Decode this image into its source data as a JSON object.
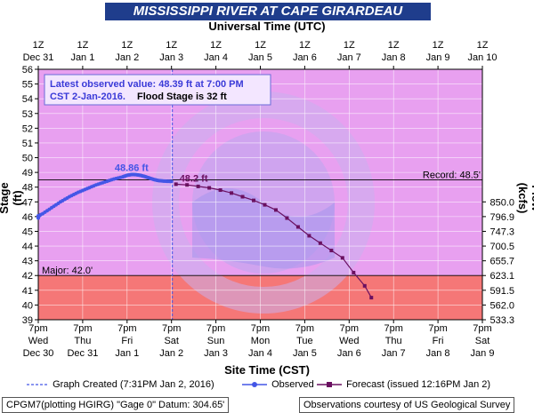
{
  "title": "MISSISSIPPI RIVER AT CAPE GIRARDEAU",
  "top_axis_label": "Universal Time (UTC)",
  "bottom_axis_label": "Site Time (CST)",
  "left_axis_label": "Stage (ft)",
  "right_axis_label": "Flow (kcfs)",
  "info_box": {
    "line1": "Latest observed value: 48.39 ft at 7:00 PM",
    "line2": "CST 2-Jan-2016.",
    "line2_bold": "Flood Stage is 32 ft"
  },
  "legend": {
    "created": "Graph Created (7:31PM Jan 2, 2016)",
    "observed": "Observed",
    "forecast": "Forecast (issued 12:16PM Jan 2)"
  },
  "footer": {
    "left": "CPGM7(plotting HGIRG) \"Gage 0\" Datum: 304.65'",
    "right": "Observations courtesy of US Geological Survey"
  },
  "colors": {
    "title_bg": "#1f3d8c",
    "plot_upper": "#e8a0f0",
    "plot_lower": "#f57777",
    "observed": "#4456e6",
    "forecast": "#6a1060"
  },
  "chart_data": {
    "type": "line",
    "x_range_days": [
      0,
      10
    ],
    "ylim": [
      39,
      56
    ],
    "y_ticks": [
      39,
      40,
      41,
      42,
      43,
      44,
      45,
      46,
      47,
      48,
      49,
      50,
      51,
      52,
      53,
      54,
      55,
      56
    ],
    "grid": true,
    "top_ticks": [
      {
        "x": 0,
        "t1": "1Z",
        "t2": "Dec 31"
      },
      {
        "x": 1,
        "t1": "1Z",
        "t2": "Jan 1"
      },
      {
        "x": 2,
        "t1": "1Z",
        "t2": "Jan 2"
      },
      {
        "x": 3,
        "t1": "1Z",
        "t2": "Jan 3"
      },
      {
        "x": 4,
        "t1": "1Z",
        "t2": "Jan 4"
      },
      {
        "x": 5,
        "t1": "1Z",
        "t2": "Jan 5"
      },
      {
        "x": 6,
        "t1": "1Z",
        "t2": "Jan 6"
      },
      {
        "x": 7,
        "t1": "1Z",
        "t2": "Jan 7"
      },
      {
        "x": 8,
        "t1": "1Z",
        "t2": "Jan 8"
      },
      {
        "x": 9,
        "t1": "1Z",
        "t2": "Jan 9"
      },
      {
        "x": 10,
        "t1": "1Z",
        "t2": "Jan 10"
      }
    ],
    "bottom_ticks": [
      {
        "x": 0,
        "t1": "7pm",
        "t2": "Wed",
        "t3": "Dec 30"
      },
      {
        "x": 1,
        "t1": "7pm",
        "t2": "Thu",
        "t3": "Dec 31"
      },
      {
        "x": 2,
        "t1": "7pm",
        "t2": "Fri",
        "t3": "Jan 1"
      },
      {
        "x": 3,
        "t1": "7pm",
        "t2": "Sat",
        "t3": "Jan 2"
      },
      {
        "x": 4,
        "t1": "7pm",
        "t2": "Sun",
        "t3": "Jan 3"
      },
      {
        "x": 5,
        "t1": "7pm",
        "t2": "Mon",
        "t3": "Jan 4"
      },
      {
        "x": 6,
        "t1": "7pm",
        "t2": "Tue",
        "t3": "Jan 5"
      },
      {
        "x": 7,
        "t1": "7pm",
        "t2": "Wed",
        "t3": "Jan 6"
      },
      {
        "x": 8,
        "t1": "7pm",
        "t2": "Thu",
        "t3": "Jan 7"
      },
      {
        "x": 9,
        "t1": "7pm",
        "t2": "Fri",
        "t3": "Jan 8"
      },
      {
        "x": 10,
        "t1": "7pm",
        "t2": "Sat",
        "t3": "Jan 9"
      }
    ],
    "flow_ticks": [
      {
        "stage": 40,
        "label": "562.0"
      },
      {
        "stage": 41,
        "label": "591.5"
      },
      {
        "stage": 42,
        "label": "623.1"
      },
      {
        "stage": 43,
        "label": "655.7"
      },
      {
        "stage": 44,
        "label": "700.5"
      },
      {
        "stage": 45,
        "label": "747.3"
      },
      {
        "stage": 46,
        "label": "796.9"
      },
      {
        "stage": 47,
        "label": "850.0"
      },
      {
        "stage": 39,
        "label": "533.3"
      }
    ],
    "record": {
      "value": 48.5,
      "label": "Record: 48.5'"
    },
    "major": {
      "value": 42.0,
      "label": "Major: 42.0'"
    },
    "graph_created_x": 3.02,
    "observed_peak": {
      "x": 2.1,
      "y": 48.86,
      "label": "48.86 ft"
    },
    "forecast_start_label": {
      "x": 3.1,
      "y": 48.2,
      "label": "48.2 ft"
    },
    "observed": {
      "x": [
        -0.1,
        0.1,
        0.3,
        0.5,
        0.7,
        0.9,
        1.1,
        1.3,
        1.5,
        1.7,
        1.9,
        2.0,
        2.1,
        2.2,
        2.3,
        2.4,
        2.5,
        2.6,
        2.7,
        2.8,
        2.9,
        3.0
      ],
      "y": [
        45.9,
        46.2,
        46.6,
        47.0,
        47.35,
        47.65,
        47.9,
        48.15,
        48.35,
        48.55,
        48.7,
        48.8,
        48.86,
        48.85,
        48.8,
        48.72,
        48.62,
        48.52,
        48.45,
        48.42,
        48.4,
        48.39
      ]
    },
    "forecast": {
      "x": [
        3.1,
        3.35,
        3.6,
        3.85,
        4.1,
        4.35,
        4.6,
        4.85,
        5.1,
        5.35,
        5.6,
        5.85,
        6.1,
        6.35,
        6.6,
        6.85,
        7.1,
        7.35,
        7.5
      ],
      "y": [
        48.2,
        48.15,
        48.05,
        47.95,
        47.8,
        47.6,
        47.35,
        47.1,
        46.8,
        46.45,
        45.9,
        45.3,
        44.7,
        44.2,
        43.7,
        43.2,
        42.2,
        41.3,
        40.5
      ]
    }
  }
}
